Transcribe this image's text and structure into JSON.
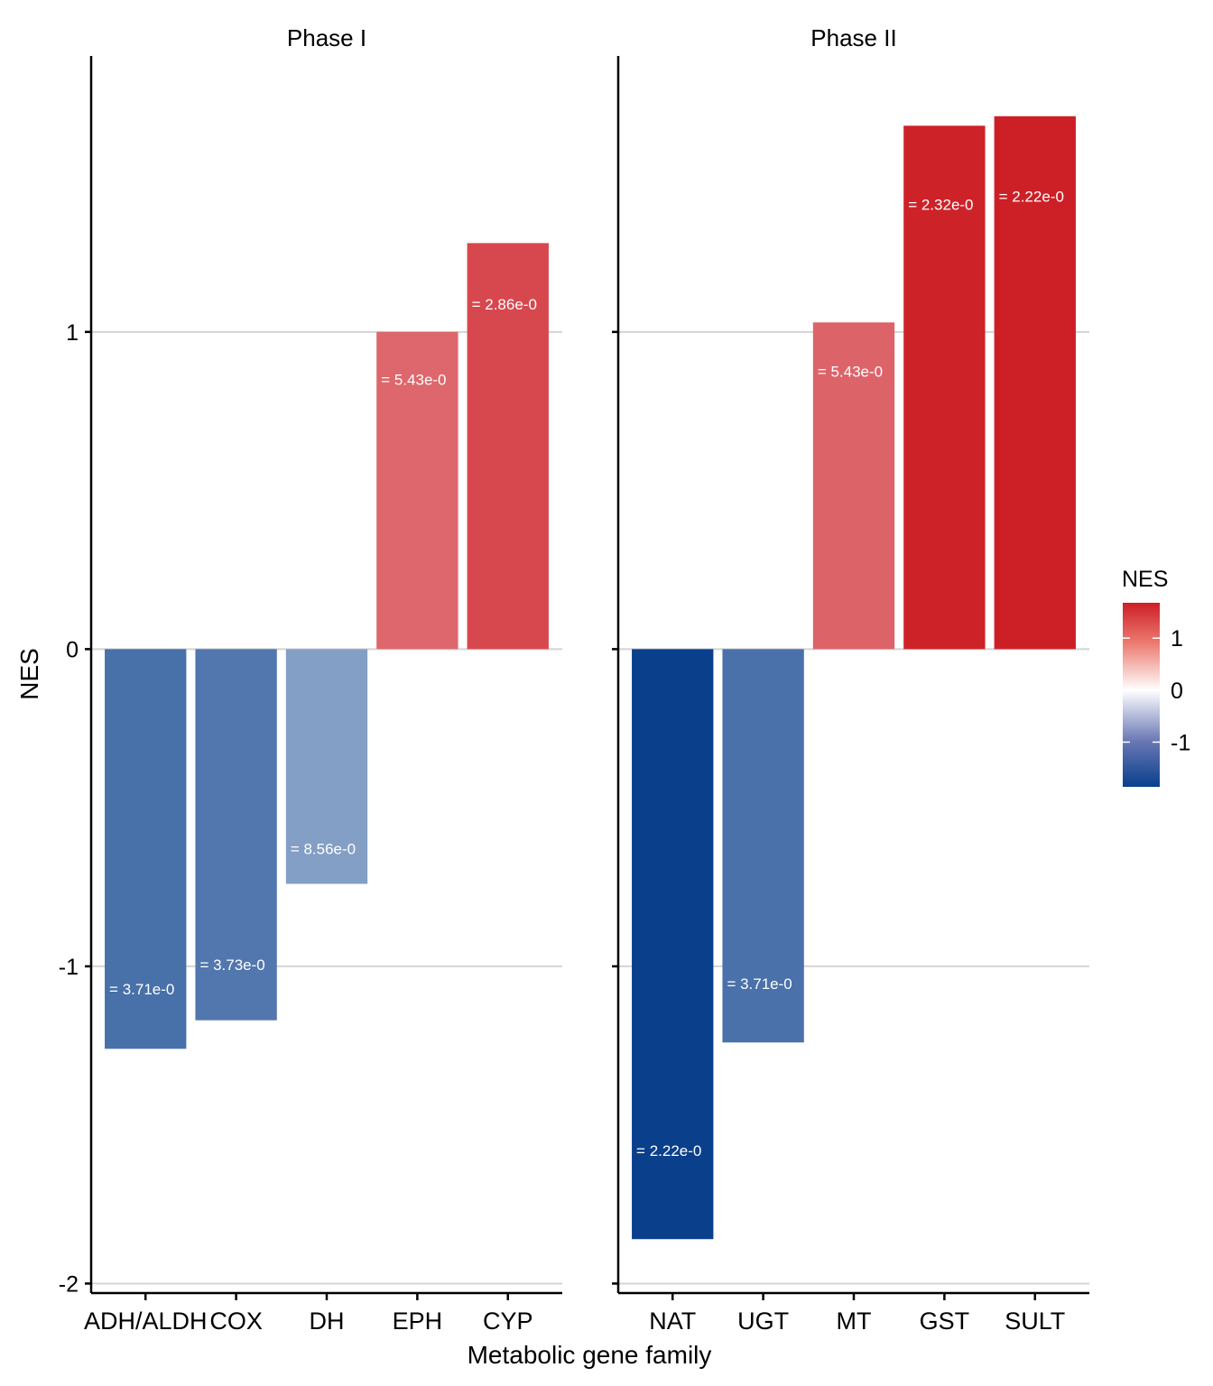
{
  "chart_data": {
    "type": "bar",
    "xlabel": "Metabolic gene family",
    "ylabel": "NES",
    "ylim": [
      -2.03,
      1.87
    ],
    "yticks": [
      -2,
      -1,
      0,
      1
    ],
    "ytick_labels": [
      "-2",
      "-1",
      "0",
      "1"
    ],
    "grid": "horizontal",
    "facets": [
      {
        "title": "Phase I",
        "categories": [
          "ADH/ALDH",
          "COX",
          "DH",
          "EPH",
          "CYP"
        ],
        "values": [
          -1.26,
          -1.17,
          -0.74,
          1.0,
          1.28
        ],
        "labels": [
          "=  3.71e-0",
          "=  3.73e-0",
          "=  8.56e-0",
          "=  5.43e-0",
          "=  2.86e-0"
        ]
      },
      {
        "title": "Phase II",
        "categories": [
          "NAT",
          "UGT",
          "MT",
          "GST",
          "SULT"
        ],
        "values": [
          -1.86,
          -1.24,
          1.03,
          1.65,
          1.68
        ],
        "labels": [
          "=  2.22e-0",
          "=  3.71e-0",
          "=  5.43e-0",
          "=  2.32e-0",
          "=  2.22e-0"
        ]
      }
    ],
    "legend": {
      "title": "NES",
      "position": "right",
      "ticks": [
        1,
        0,
        -1
      ],
      "tick_labels": [
        "1",
        "0",
        "-1"
      ],
      "range": [
        -1.86,
        1.68
      ],
      "low_color": "#0a3f8c",
      "mid_color": "#ffffff",
      "high_color": "#cd1f26"
    }
  }
}
